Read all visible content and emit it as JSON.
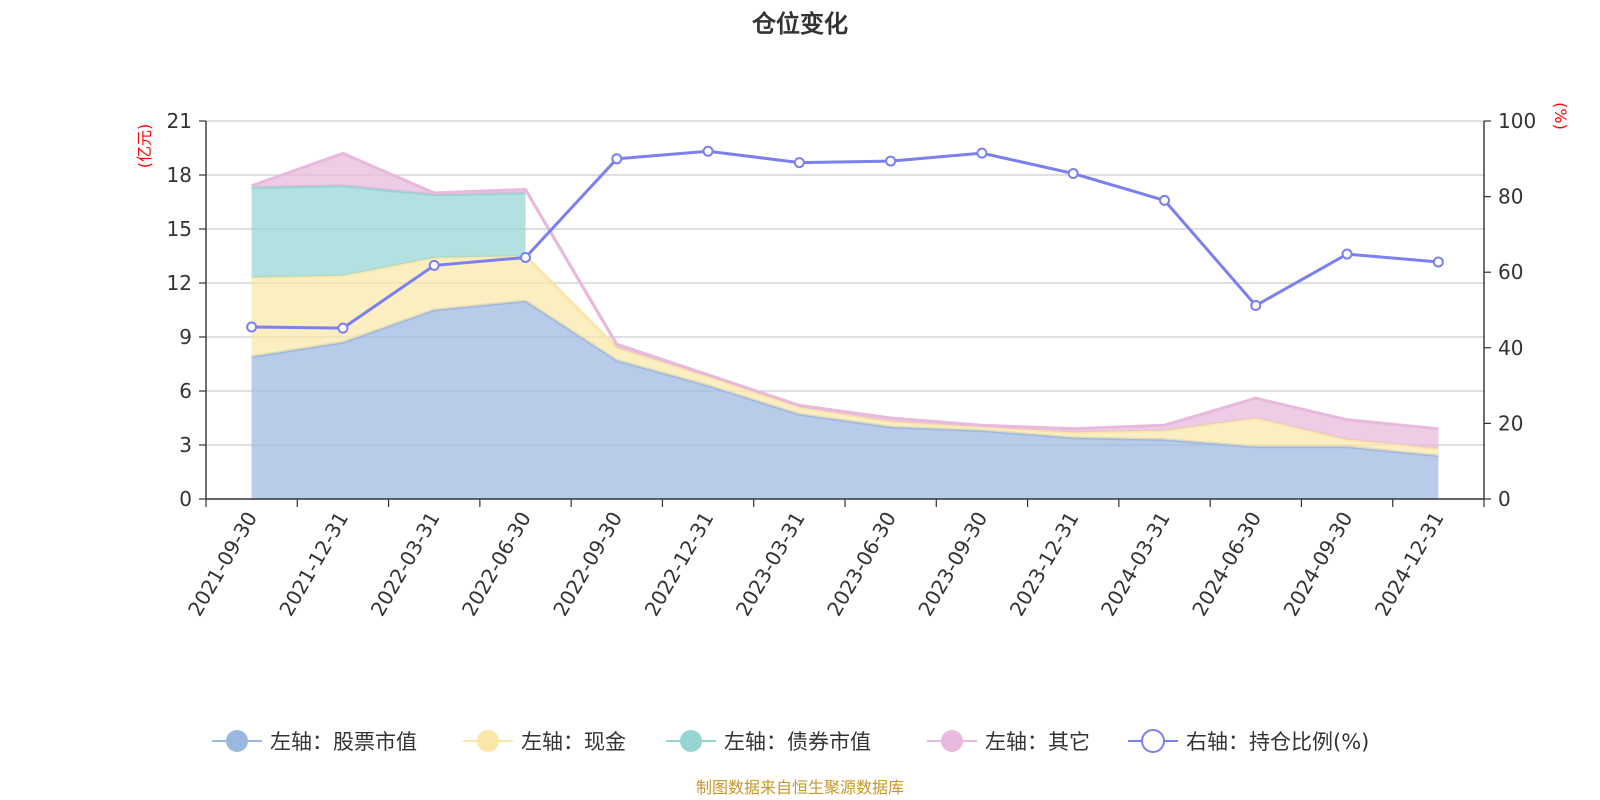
{
  "chart_data": {
    "type": "area",
    "title": "仓位变化",
    "categories": [
      "2021-09-30",
      "2021-12-31",
      "2022-03-31",
      "2022-06-30",
      "2022-09-30",
      "2022-12-31",
      "2023-03-31",
      "2023-06-30",
      "2023-09-30",
      "2023-12-31",
      "2024-03-31",
      "2024-06-30",
      "2024-09-30",
      "2024-12-31"
    ],
    "left_axis": {
      "unit": "(亿元)",
      "ylim": [
        0,
        21
      ],
      "ticks": [
        "0",
        "3",
        "6",
        "9",
        "12",
        "15",
        "18",
        "21"
      ]
    },
    "right_axis": {
      "unit": "(%)",
      "ylim": [
        0,
        100
      ],
      "ticks": [
        "0",
        "20",
        "40",
        "60",
        "80",
        "100"
      ]
    },
    "series": [
      {
        "name": "左轴：股票市值",
        "axis": "left",
        "kind": "stacked-area",
        "color": "#9db8e0",
        "values": [
          7.9,
          8.7,
          10.5,
          11.0,
          7.7,
          6.3,
          4.7,
          4.0,
          3.8,
          3.4,
          3.3,
          2.9,
          2.9,
          2.4
        ]
      },
      {
        "name": "左轴：现金",
        "axis": "left",
        "kind": "stacked-area",
        "color": "#f9e7a8",
        "values": [
          4.4,
          3.7,
          2.9,
          2.5,
          0.7,
          0.5,
          0.4,
          0.3,
          0.2,
          0.3,
          0.5,
          1.6,
          0.4,
          0.4
        ]
      },
      {
        "name": "左轴：债券市值",
        "axis": "left",
        "kind": "stacked-area",
        "color": "#96d4d4",
        "values": [
          5.0,
          5.0,
          3.5,
          3.5,
          null,
          null,
          null,
          null,
          null,
          null,
          null,
          null,
          null,
          null
        ]
      },
      {
        "name": "左轴：其它",
        "axis": "left",
        "kind": "stacked-area",
        "color": "#e8b9dc",
        "values": [
          0.1,
          1.8,
          0.1,
          0.2,
          0.2,
          0.1,
          0.1,
          0.2,
          0.1,
          0.2,
          0.3,
          1.1,
          1.1,
          1.1
        ]
      },
      {
        "name": "右轴：持仓比例(%)",
        "axis": "right",
        "kind": "line",
        "color": "#7b7ff0",
        "values": [
          45.5,
          45.2,
          61.8,
          63.9,
          90.0,
          92.0,
          89.0,
          89.4,
          91.5,
          86.1,
          79.0,
          51.2,
          64.8,
          62.7
        ]
      }
    ],
    "legend_position": "bottom",
    "grid": true,
    "source_note": "制图数据来自恒生聚源数据库"
  }
}
